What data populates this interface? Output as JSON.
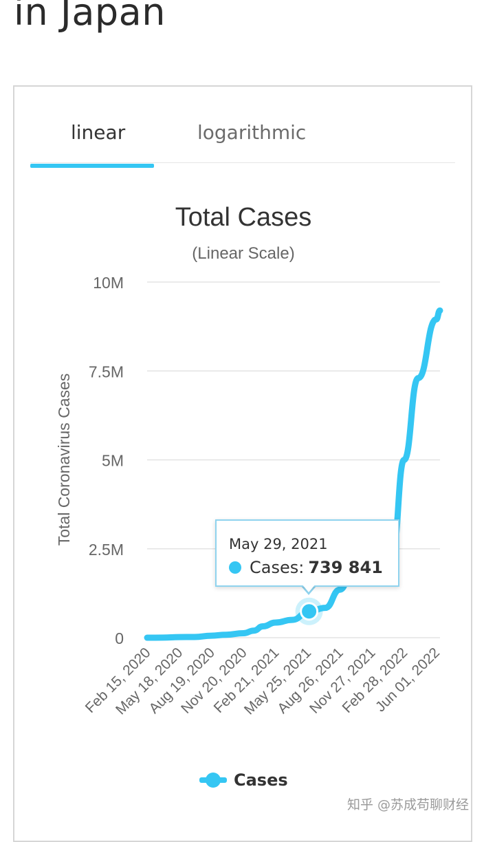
{
  "page": {
    "title": "in Japan"
  },
  "tabs": [
    {
      "label": "linear",
      "active": true
    },
    {
      "label": "logarithmic",
      "active": false
    }
  ],
  "colors": {
    "series": "#35c6f3",
    "grid": "#e3e3e3",
    "axis_text": "#666666"
  },
  "chart_data": {
    "type": "line",
    "title": "Total Cases",
    "subtitle": "(Linear Scale)",
    "xlabel": "",
    "ylabel": "Total Coronavirus Cases",
    "ylim": [
      0,
      10000000
    ],
    "yticks": [
      {
        "value": 0,
        "label": "0"
      },
      {
        "value": 2500000,
        "label": "2.5M"
      },
      {
        "value": 5000000,
        "label": "5M"
      },
      {
        "value": 7500000,
        "label": "7.5M"
      },
      {
        "value": 10000000,
        "label": "10M"
      }
    ],
    "x_start": "2020-02-15",
    "x_end": "2022-06-12",
    "xticks": [
      {
        "date": "2020-02-15",
        "label": "Feb 15, 2020"
      },
      {
        "date": "2020-05-18",
        "label": "May 18, 2020"
      },
      {
        "date": "2020-08-19",
        "label": "Aug 19, 2020"
      },
      {
        "date": "2020-11-20",
        "label": "Nov 20, 2020"
      },
      {
        "date": "2021-02-21",
        "label": "Feb 21, 2021"
      },
      {
        "date": "2021-05-25",
        "label": "May 25, 2021"
      },
      {
        "date": "2021-08-26",
        "label": "Aug 26, 2021"
      },
      {
        "date": "2021-11-27",
        "label": "Nov 27, 2021"
      },
      {
        "date": "2022-02-28",
        "label": "Feb 28, 2022"
      },
      {
        "date": "2022-06-01",
        "label": "Jun 01, 2022"
      }
    ],
    "series": [
      {
        "name": "Cases",
        "points": [
          [
            "2020-02-15",
            60
          ],
          [
            "2020-04-01",
            2400
          ],
          [
            "2020-05-18",
            16500
          ],
          [
            "2020-07-01",
            19000
          ],
          [
            "2020-08-19",
            57000
          ],
          [
            "2020-10-01",
            84000
          ],
          [
            "2020-11-20",
            125000
          ],
          [
            "2020-12-20",
            200000
          ],
          [
            "2021-01-15",
            320000
          ],
          [
            "2021-02-21",
            425000
          ],
          [
            "2021-04-10",
            500000
          ],
          [
            "2021-05-29",
            739841
          ],
          [
            "2021-07-15",
            840000
          ],
          [
            "2021-08-26",
            1350000
          ],
          [
            "2021-09-25",
            1690000
          ],
          [
            "2021-11-27",
            1725000
          ],
          [
            "2022-01-01",
            1735000
          ],
          [
            "2022-01-25",
            2350000
          ],
          [
            "2022-02-28",
            5000000
          ],
          [
            "2022-04-10",
            7300000
          ],
          [
            "2022-06-01",
            8950000
          ],
          [
            "2022-06-12",
            9200000
          ]
        ]
      }
    ],
    "tooltip": {
      "date": "May 29, 2021",
      "series": "Cases",
      "label": "Cases:",
      "value": "739 841",
      "x_date": "2021-05-29",
      "y": 739841
    }
  },
  "legend": {
    "label": "Cases"
  },
  "watermark": "知乎 @苏成苟聊财经"
}
